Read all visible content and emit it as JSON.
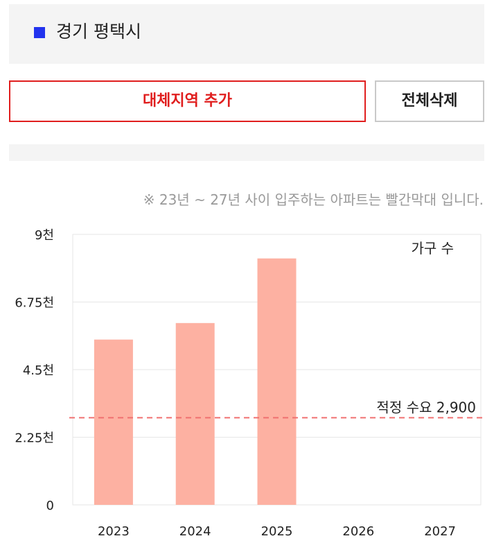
{
  "region": {
    "name": "경기 평택시",
    "marker_color": "#2233ee"
  },
  "buttons": {
    "add_label": "대체지역 추가",
    "delete_all_label": "전체삭제"
  },
  "notice": "※ 23년 ~ 27년 사이 입주하는 아파트는 빨간막대 입니다.",
  "chart_data": {
    "type": "bar",
    "categories": [
      "2023",
      "2024",
      "2025",
      "2026",
      "2027"
    ],
    "series": [
      {
        "name": "가구 수",
        "values": [
          5500,
          6050,
          8200,
          0,
          0
        ],
        "color": "#fdb1a2"
      }
    ],
    "ylim": [
      0,
      9000
    ],
    "yticks": [
      0,
      2250,
      4500,
      6750,
      9000
    ],
    "ytick_labels": [
      "0",
      "2.25천",
      "4.5천",
      "6.75천",
      "9천"
    ],
    "reference_line": {
      "label": "적정 수요 2,900",
      "value": 2900,
      "color": "#f07070"
    },
    "grid": true,
    "legend_position": "top-right"
  }
}
